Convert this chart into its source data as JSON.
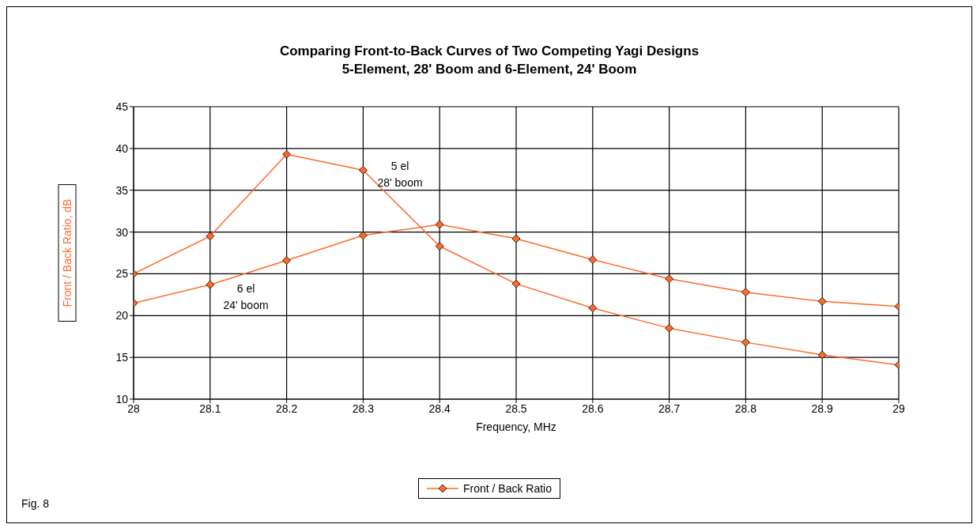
{
  "chart_data": {
    "type": "line",
    "title": "Comparing Front-to-Back Curves of Two Competing Yagi Designs",
    "subtitle": "5-Element, 28' Boom and 6-Element, 24' Boom",
    "xlabel": "Frequency, MHz",
    "ylabel": "Front / Back Ratio, dB",
    "x": [
      28,
      28.1,
      28.2,
      28.3,
      28.4,
      28.5,
      28.6,
      28.7,
      28.8,
      28.9,
      29
    ],
    "series": [
      {
        "name": "Front / Back Ratio",
        "color": "#ff6a2a",
        "values": [
          25.0,
          29.5,
          39.3,
          37.4,
          28.3,
          23.8,
          20.9,
          18.5,
          16.8,
          15.3,
          14.1
        ]
      },
      {
        "color": "#ff6a2a",
        "values": [
          21.5,
          23.7,
          26.6,
          29.6,
          30.9,
          29.2,
          26.7,
          24.4,
          22.8,
          21.7,
          21.1
        ]
      }
    ],
    "xlim": [
      28,
      29
    ],
    "xticks": [
      28,
      28.1,
      28.2,
      28.3,
      28.4,
      28.5,
      28.6,
      28.7,
      28.8,
      28.9,
      29
    ],
    "ylim": [
      10,
      45
    ],
    "yticks": [
      10,
      15,
      20,
      25,
      30,
      35,
      40,
      45
    ],
    "grid": true,
    "legend": "bottom",
    "marker": "diamond",
    "line_style": "solid",
    "annotations": [
      "5 el\n28' boom",
      "6 el\n24' boom",
      "Fig. 8"
    ]
  }
}
